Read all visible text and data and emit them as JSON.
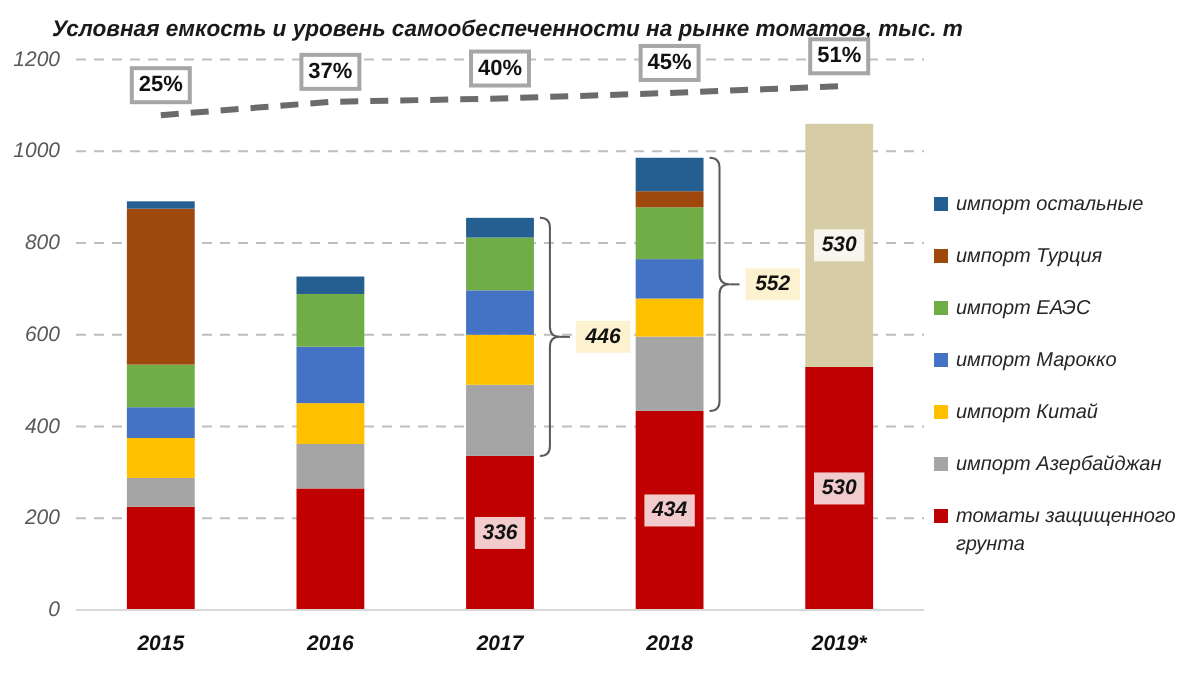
{
  "chart_data": {
    "type": "bar",
    "title": "Условная емкость и уровень самообеспеченности на рынке томатов, тыс. т",
    "categories": [
      "2015",
      "2016",
      "2017",
      "2018",
      "2019*"
    ],
    "stacked": true,
    "ylim": [
      0,
      1200
    ],
    "yticks": [
      0,
      200,
      400,
      600,
      800,
      1000,
      1200
    ],
    "y2lim": [
      -420,
      75
    ],
    "grid": "y",
    "legend": "right",
    "tick_labels": "xy",
    "series": [
      {
        "name": "томаты защищенного грунта",
        "color": "#c00000",
        "values": [
          225,
          265,
          336,
          434,
          530
        ],
        "value_labels": [
          null,
          null,
          "336",
          "434",
          "530"
        ]
      },
      {
        "name": "импорт Азербайджан",
        "color": "#a5a5a5",
        "values": [
          63,
          97,
          155,
          162,
          null
        ]
      },
      {
        "name": "импорт Китай",
        "color": "#ffc000",
        "values": [
          87,
          89,
          109,
          83,
          null
        ]
      },
      {
        "name": "импорт Марокко",
        "color": "#4472c4",
        "values": [
          67,
          123,
          97,
          86,
          null
        ]
      },
      {
        "name": "импорт ЕАЭС",
        "color": "#70ad47",
        "values": [
          93,
          115,
          115,
          113,
          null
        ]
      },
      {
        "name": "импорт Турция",
        "color": "#9e480e",
        "values": [
          340,
          null,
          null,
          35,
          null
        ]
      },
      {
        "name": "импорт остальные",
        "color": "#255e91",
        "values": [
          16,
          38,
          43,
          73,
          null
        ]
      },
      {
        "color": "#d6cca6",
        "values": [
          null,
          null,
          null,
          null,
          530
        ],
        "value_labels": [
          null,
          null,
          null,
          null,
          "530"
        ]
      },
      {
        "type": "line",
        "axis": "y2",
        "color": "#6b6b6b",
        "line_style": "dashed",
        "values": [
          25,
          37,
          40,
          45,
          51
        ],
        "value_labels": [
          "25%",
          "37%",
          "40%",
          "45%",
          "51%"
        ]
      }
    ],
    "annotations": [
      "446",
      "552"
    ]
  }
}
